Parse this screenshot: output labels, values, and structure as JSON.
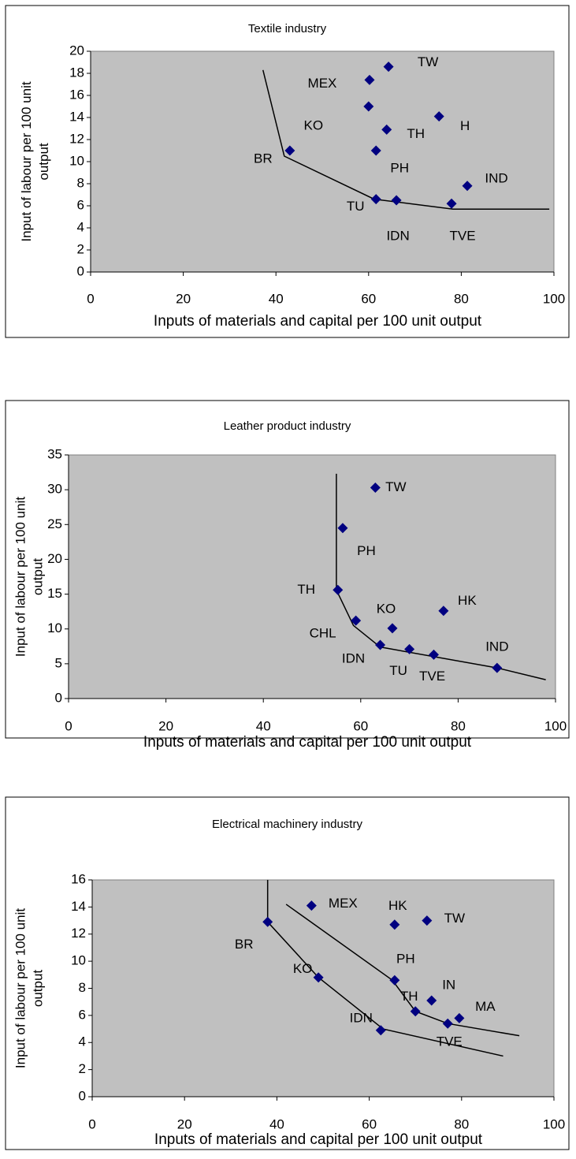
{
  "chart_data": [
    {
      "type": "scatter",
      "title": "Textile industry",
      "xlabel": "Inputs of materials and capital per 100 unit output",
      "ylabel": "Input of labour per 100 unit output",
      "labels": [
        "TW",
        "MEX",
        "KO",
        "H",
        "TH",
        "BR",
        "PH",
        "IND",
        "TU",
        "IDN",
        "TVE"
      ],
      "x": [
        64.3,
        60.2,
        60.0,
        75.2,
        63.9,
        43.0,
        61.6,
        81.3,
        61.6,
        66.0,
        77.9
      ],
      "y": [
        18.6,
        17.4,
        15.0,
        14.1,
        12.9,
        11.0,
        11.0,
        7.8,
        6.6,
        6.5,
        6.2
      ],
      "color": "#000080",
      "lines": [
        {
          "color": "#000000",
          "x": [
            37.2,
            41.8,
            61.2,
            78.2,
            99
          ],
          "y": [
            18.3,
            10.5,
            6.6,
            5.7,
            5.7
          ]
        }
      ],
      "xlim": [
        0,
        100
      ],
      "xticks": [
        0,
        20,
        40,
        60,
        80,
        100
      ],
      "ylim": [
        0,
        20
      ],
      "yticks": [
        0,
        2,
        4,
        6,
        8,
        10,
        12,
        14,
        16,
        18,
        20
      ]
    },
    {
      "type": "scatter",
      "title": "Leather product industry",
      "xlabel": "Inputs of materials and capital per 100 unit output",
      "ylabel": "Input of labour per 100 unit output",
      "labels": [
        "TW",
        "PH",
        "TH",
        "CHL",
        "HK",
        "KO",
        "IDN",
        "TU",
        "TVE",
        "IND"
      ],
      "x": [
        63,
        56.3,
        55.3,
        59,
        77,
        66.5,
        64,
        70,
        75,
        88
      ],
      "y": [
        30.3,
        24.5,
        15.6,
        11.2,
        12.6,
        10.1,
        7.7,
        7.1,
        6.3,
        4.4
      ],
      "color": "#000080",
      "lines": [
        {
          "color": "#000000",
          "x": [
            55,
            55,
            58.5,
            64,
            88,
            98
          ],
          "y": [
            32.3,
            15.6,
            10.5,
            7.4,
            4.4,
            2.7
          ]
        }
      ],
      "xlim": [
        0,
        100
      ],
      "xticks": [
        0,
        20,
        40,
        60,
        80,
        100
      ],
      "ylim": [
        0,
        35
      ],
      "yticks": [
        0,
        5,
        10,
        15,
        20,
        25,
        30,
        35
      ]
    },
    {
      "type": "scatter",
      "title": "Electrical machinery industry",
      "xlabel": "Inputs of materials and capital per 100 unit output",
      "ylabel": "Input of labour per 100 unit output",
      "labels": [
        "MEX",
        "HK",
        "TW",
        "BR",
        "PH",
        "KO",
        "IN",
        "TH",
        "MA",
        "TVE",
        "IDN"
      ],
      "x": [
        47.5,
        65.5,
        72.5,
        38,
        65.5,
        49,
        73.5,
        70,
        79.5,
        77,
        62.5
      ],
      "y": [
        14.1,
        12.7,
        13.0,
        12.9,
        8.6,
        8.8,
        7.1,
        6.3,
        5.8,
        5.4,
        4.9
      ],
      "color": "#000080",
      "lines": [
        {
          "color": "#000000",
          "x": [
            38,
            38,
            49,
            63,
            89
          ],
          "y": [
            16,
            12.9,
            8.8,
            5.0,
            3.0
          ]
        },
        {
          "color": "#000000",
          "x": [
            42,
            65,
            70,
            77,
            92.5
          ],
          "y": [
            14.2,
            8.6,
            6.3,
            5.4,
            4.5
          ]
        }
      ],
      "xlim": [
        0,
        100
      ],
      "xticks": [
        0,
        20,
        40,
        60,
        80,
        100
      ],
      "ylim": [
        0,
        16
      ],
      "yticks": [
        0,
        2,
        4,
        6,
        8,
        10,
        12,
        14,
        16
      ]
    }
  ]
}
